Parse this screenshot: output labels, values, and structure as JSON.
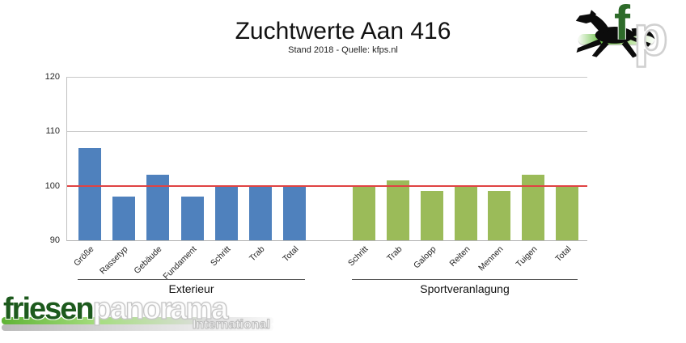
{
  "title": "Zuchtwerte Aan 416",
  "subtitle": "Stand 2018 - Quelle: kfps.nl",
  "chart_data": {
    "type": "bar",
    "title": "Zuchtwerte Aan 416",
    "subtitle": "Stand 2018 - Quelle: kfps.nl",
    "xlabel": "",
    "ylabel": "",
    "ylim": [
      90,
      120
    ],
    "yticks": [
      90,
      100,
      110,
      120
    ],
    "grid": true,
    "legend": false,
    "reference_line": {
      "value": 100,
      "color": "#e04343"
    },
    "groups": [
      {
        "label": "Exterieur",
        "color": "#4f81bd",
        "categories": [
          "Größe",
          "Rassetyp",
          "Gebäude",
          "Fundament",
          "Schritt",
          "Trab",
          "Total"
        ],
        "values": [
          107,
          98,
          102,
          98,
          100,
          100,
          100
        ]
      },
      {
        "label": "Sportveranlagung",
        "color": "#9bbb59",
        "categories": [
          "Schritt",
          "Trab",
          "Galopp",
          "Reiten",
          "Mennen",
          "Tuigen",
          "Total"
        ],
        "values": [
          100,
          101,
          99,
          100,
          99,
          102,
          100
        ]
      }
    ]
  },
  "logos": {
    "fp_monogram": {
      "f": "f",
      "p": "p"
    },
    "wordmark": {
      "part1": "friesen",
      "part2": "panorama",
      "subtitle": "International"
    }
  },
  "colors": {
    "bar_blue": "#4f81bd",
    "bar_green": "#9bbb59",
    "ref_line": "#e04343",
    "brand_green": "#1d5a1d"
  }
}
